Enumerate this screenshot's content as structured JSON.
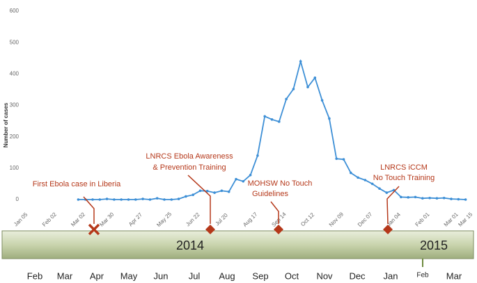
{
  "chart_data": {
    "type": "line",
    "y_label": "Number of cases",
    "categories": [
      "Jan 05",
      null,
      null,
      null,
      "Feb 02",
      null,
      null,
      null,
      "Mar 02",
      null,
      null,
      null,
      "Mar 30",
      null,
      null,
      null,
      "Apr 27",
      null,
      null,
      null,
      "May 25",
      null,
      null,
      null,
      "Jun 22",
      null,
      null,
      null,
      "Jul 20",
      null,
      null,
      null,
      "Aug 17",
      null,
      null,
      null,
      "Sep 14",
      null,
      null,
      null,
      "Oct 12",
      null,
      null,
      null,
      "Nov 09",
      null,
      null,
      null,
      "Dec 07",
      null,
      null,
      null,
      "Jan 04",
      null,
      null,
      null,
      "Feb 01",
      null,
      null,
      null,
      "Mar 01",
      null,
      "Mar 15"
    ],
    "series": [
      {
        "name": "Cases",
        "color": "#3d8fd6",
        "values": [
          null,
          null,
          null,
          null,
          null,
          null,
          null,
          null,
          0,
          0,
          0,
          0,
          2,
          0,
          0,
          0,
          0,
          2,
          0,
          4,
          0,
          0,
          2,
          10,
          15,
          28,
          27,
          22,
          28,
          25,
          65,
          58,
          78,
          140,
          265,
          255,
          248,
          320,
          352,
          440,
          358,
          388,
          316,
          258,
          130,
          128,
          85,
          70,
          62,
          50,
          35,
          22,
          30,
          8,
          7,
          8,
          4,
          5,
          4,
          5,
          2,
          1,
          0
        ]
      }
    ],
    "ylim": [
      0,
      600
    ],
    "yticks": [
      0,
      100,
      200,
      300,
      400,
      500,
      600
    ],
    "grid": false,
    "annotations": [
      {
        "text": [
          "First Ebola case in Liberia"
        ],
        "marker": "x"
      },
      {
        "text": [
          "LNRCS Ebola Awareness",
          "& Prevention Training"
        ],
        "marker": "diamond"
      },
      {
        "text": [
          "MOHSW No Touch",
          "Guidelines"
        ],
        "marker": "diamond"
      },
      {
        "text": [
          "LNRCS iCCM",
          "No Touch Training"
        ],
        "marker": "diamond"
      }
    ],
    "timeline": {
      "years": [
        "2014",
        "2015"
      ],
      "months": [
        "Feb",
        "Mar",
        "Apr",
        "May",
        "Jun",
        "Jul",
        "Aug",
        "Sep",
        "Oct",
        "Nov",
        "Dec",
        "Jan",
        "Mar"
      ],
      "marker_label": "Feb"
    }
  }
}
